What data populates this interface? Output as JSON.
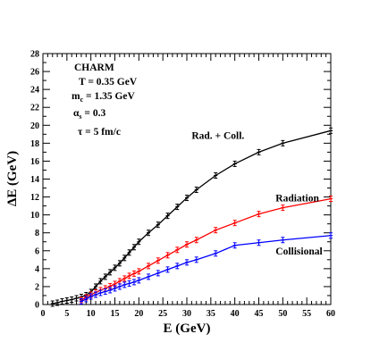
{
  "chart_data": {
    "type": "line",
    "xlabel": "E (GeV)",
    "ylabel": "ΔE (GeV)",
    "xlim": [
      0,
      60
    ],
    "ylim": [
      0,
      28
    ],
    "xticks": [
      0,
      5,
      10,
      15,
      20,
      25,
      30,
      35,
      40,
      45,
      50,
      55,
      60
    ],
    "yticks": [
      0,
      2,
      4,
      6,
      8,
      10,
      12,
      14,
      16,
      18,
      20,
      22,
      24,
      26,
      28
    ],
    "grid": false,
    "legend": "none",
    "annotations": {
      "flavor": "CHARM",
      "temperature": "T = 0.35 GeV",
      "mass_prefix": "m",
      "mass_sub": "c",
      "mass_value": " = 1.35 GeV",
      "alpha_symbol": "α",
      "alpha_sub": "s",
      "alpha_value": " = 0.3",
      "tau": "τ = 5 fm/c"
    },
    "series": [
      {
        "name": "Rad. + Coll.",
        "color": "#000000",
        "x": [
          2,
          3,
          4,
          5,
          6,
          7,
          8,
          9,
          10,
          11,
          12,
          13,
          14,
          15,
          16,
          17,
          18,
          19,
          20,
          22,
          24,
          26,
          28,
          30,
          32,
          36,
          40,
          45,
          50,
          60
        ],
        "y": [
          0.1,
          0.2,
          0.35,
          0.45,
          0.55,
          0.7,
          0.85,
          1.05,
          1.4,
          2.0,
          2.6,
          3.1,
          3.6,
          4.1,
          4.6,
          5.2,
          5.8,
          6.4,
          7.0,
          8.0,
          8.9,
          9.9,
          10.9,
          11.9,
          12.8,
          14.4,
          15.7,
          17.0,
          18.0,
          19.4
        ],
        "label_x": 31,
        "label_y": 18.5
      },
      {
        "name": "Radiation",
        "color": "#ff0000",
        "x": [
          8,
          9,
          10,
          11,
          12,
          13,
          14,
          15,
          16,
          17,
          18,
          19,
          20,
          22,
          24,
          26,
          28,
          30,
          32,
          36,
          40,
          45,
          50,
          60
        ],
        "y": [
          0.5,
          0.8,
          1.1,
          1.35,
          1.6,
          1.8,
          2.05,
          2.3,
          2.6,
          2.9,
          3.2,
          3.45,
          3.7,
          4.3,
          4.9,
          5.5,
          6.1,
          6.7,
          7.2,
          8.3,
          9.1,
          10.1,
          10.8,
          11.8
        ],
        "label_x": 48.5,
        "label_y": 11.5
      },
      {
        "name": "Collisional",
        "color": "#0000ff",
        "x": [
          8,
          9,
          10,
          11,
          12,
          13,
          14,
          15,
          16,
          17,
          18,
          19,
          20,
          22,
          24,
          26,
          28,
          30,
          32,
          36,
          40,
          45,
          50,
          60
        ],
        "y": [
          0.35,
          0.6,
          0.9,
          1.1,
          1.3,
          1.45,
          1.6,
          1.8,
          2.0,
          2.2,
          2.35,
          2.5,
          2.7,
          3.1,
          3.5,
          3.9,
          4.3,
          4.7,
          5.0,
          5.7,
          6.6,
          6.9,
          7.2,
          7.7
        ],
        "label_x": 48.5,
        "label_y": 5.6
      }
    ]
  }
}
